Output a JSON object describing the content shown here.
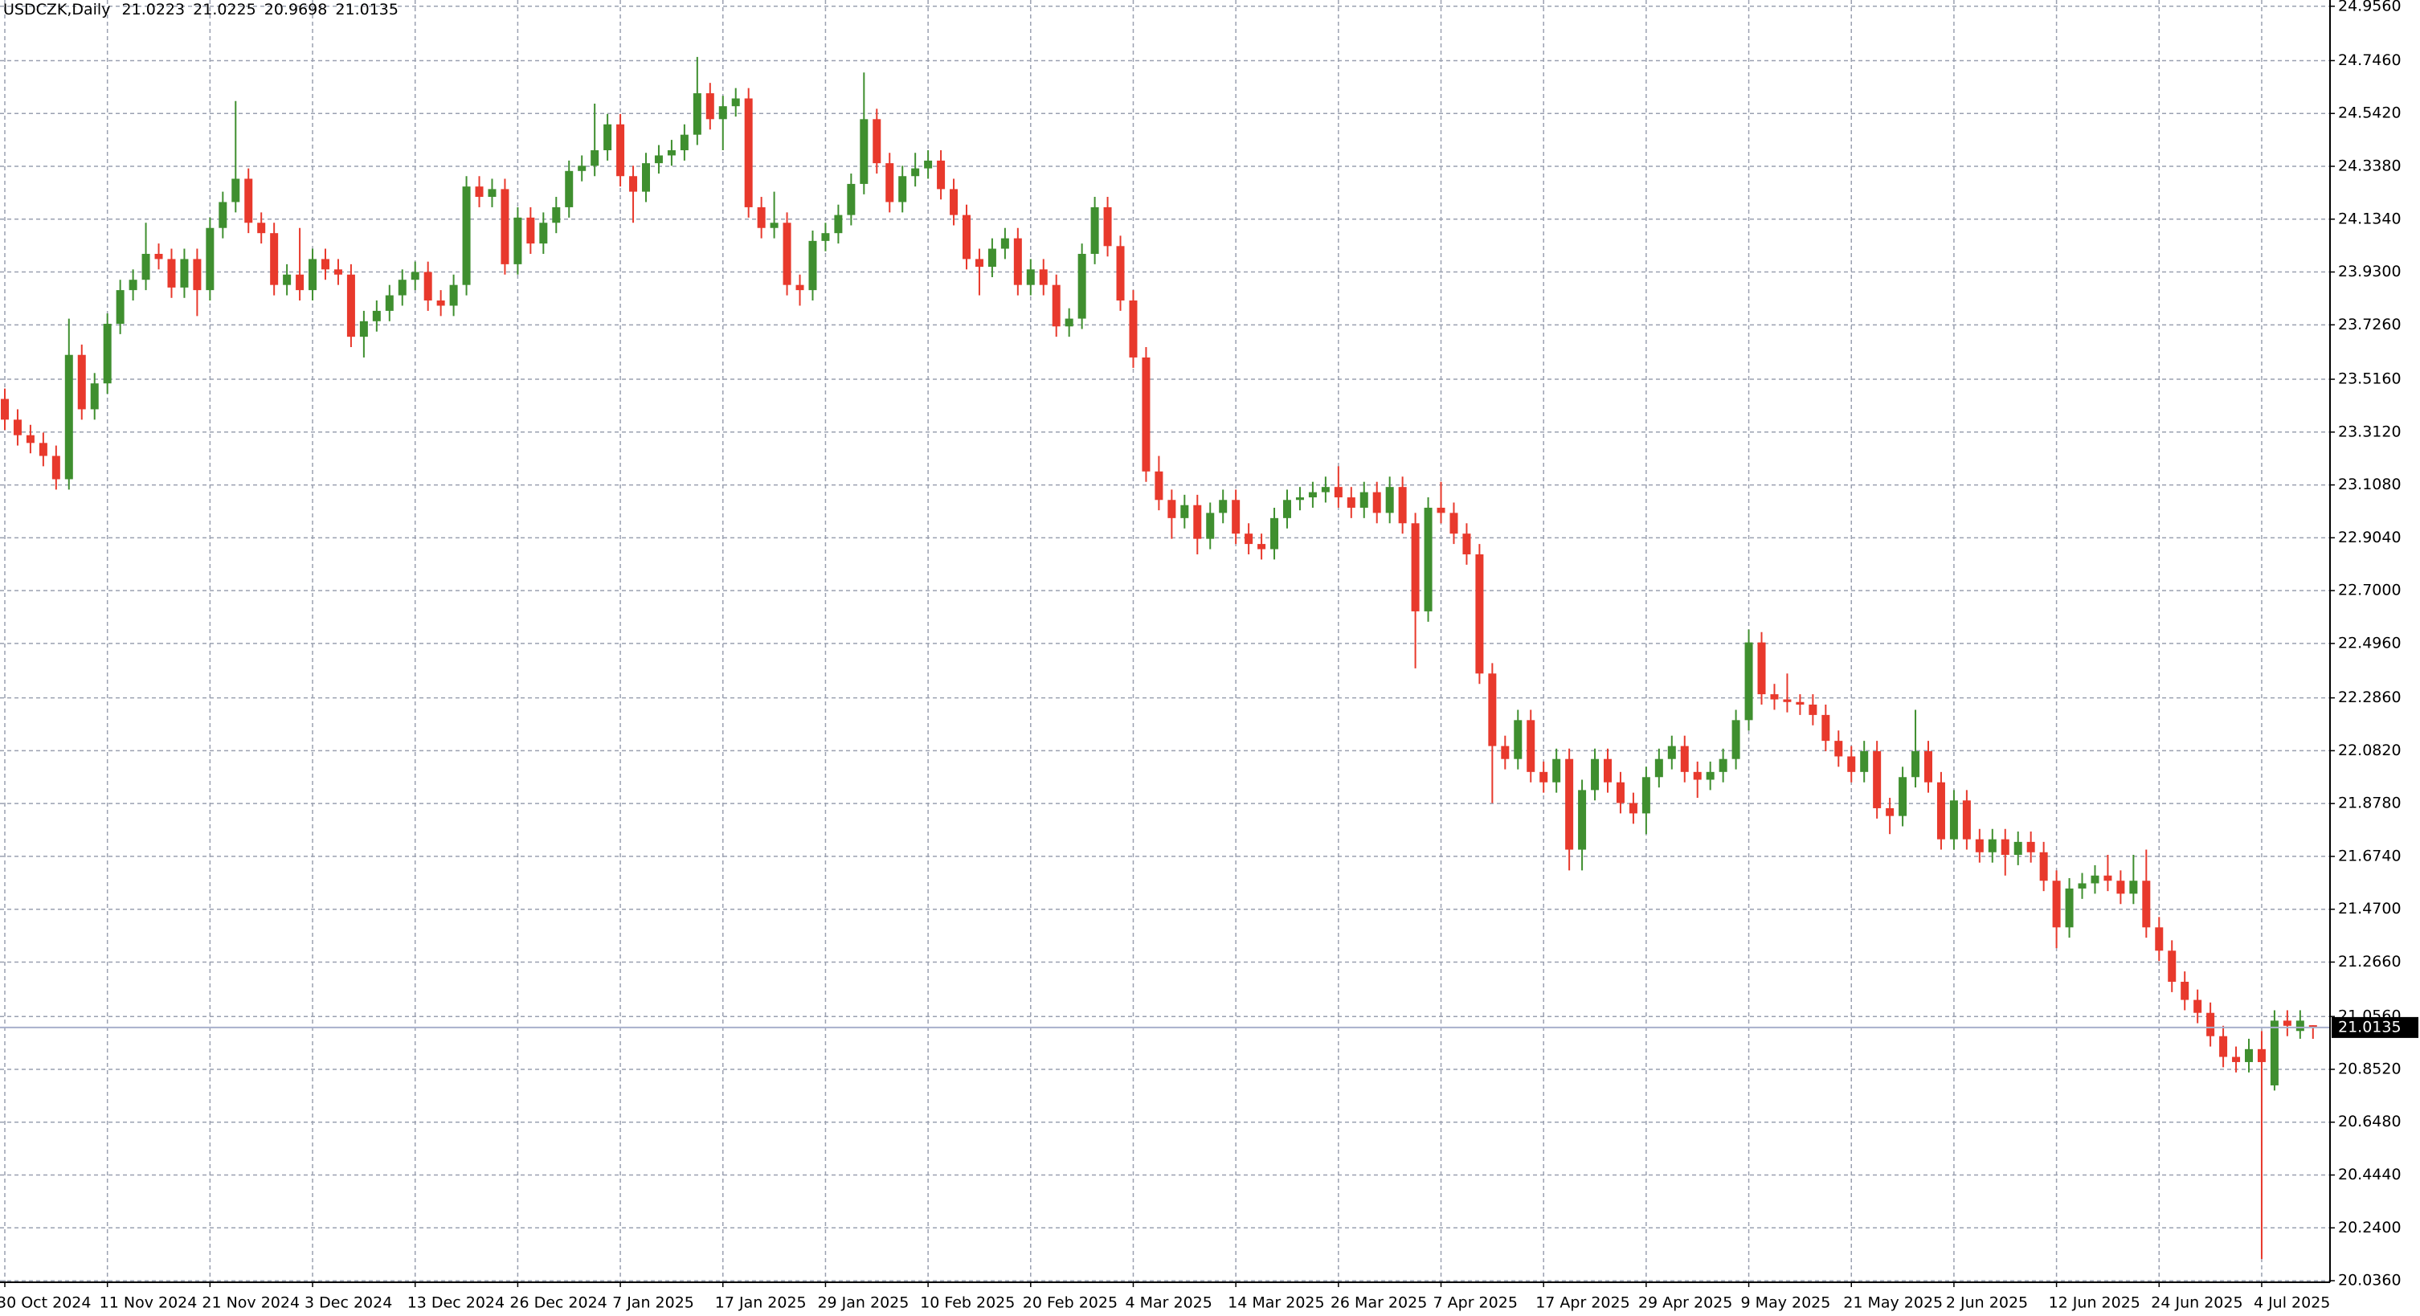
{
  "chart_data": {
    "type": "candlestick",
    "title": "USDCZK,Daily",
    "up_color": "#3f8f2f",
    "down_color": "#e8392c",
    "grid": true,
    "ylim": [
      20.03,
      24.98
    ],
    "yticks": [
      {
        "value": 24.956,
        "label": "24.9560"
      },
      {
        "value": 24.746,
        "label": "24.7460"
      },
      {
        "value": 24.542,
        "label": "24.5420"
      },
      {
        "value": 24.338,
        "label": "24.3380"
      },
      {
        "value": 24.134,
        "label": "24.1340"
      },
      {
        "value": 23.93,
        "label": "23.9300"
      },
      {
        "value": 23.726,
        "label": "23.7260"
      },
      {
        "value": 23.516,
        "label": "23.5160"
      },
      {
        "value": 23.312,
        "label": "23.3120"
      },
      {
        "value": 23.108,
        "label": "23.1080"
      },
      {
        "value": 22.904,
        "label": "22.9040"
      },
      {
        "value": 22.7,
        "label": "22.7000"
      },
      {
        "value": 22.496,
        "label": "22.4960"
      },
      {
        "value": 22.286,
        "label": "22.2860"
      },
      {
        "value": 22.082,
        "label": "22.0820"
      },
      {
        "value": 21.878,
        "label": "21.8780"
      },
      {
        "value": 21.674,
        "label": "21.6740"
      },
      {
        "value": 21.47,
        "label": "21.4700"
      },
      {
        "value": 21.266,
        "label": "21.2660"
      },
      {
        "value": 21.056,
        "label": "21.0560"
      },
      {
        "value": 20.852,
        "label": "20.8520"
      },
      {
        "value": 20.648,
        "label": "20.6480"
      },
      {
        "value": 20.444,
        "label": "20.4440"
      },
      {
        "value": 20.24,
        "label": "20.2400"
      },
      {
        "value": 20.036,
        "label": "20.0360"
      }
    ],
    "categories": [
      "30 Oct 2024",
      null,
      null,
      null,
      null,
      null,
      null,
      null,
      "11 Nov 2024",
      null,
      null,
      null,
      null,
      null,
      null,
      null,
      "21 Nov 2024",
      null,
      null,
      null,
      null,
      null,
      null,
      null,
      "3 Dec 2024",
      null,
      null,
      null,
      null,
      null,
      null,
      null,
      "13 Dec 2024",
      null,
      null,
      null,
      null,
      null,
      null,
      null,
      "26 Dec 2024",
      null,
      null,
      null,
      null,
      null,
      null,
      null,
      "7 Jan 2025",
      null,
      null,
      null,
      null,
      null,
      null,
      null,
      "17 Jan 2025",
      null,
      null,
      null,
      null,
      null,
      null,
      null,
      "29 Jan 2025",
      null,
      null,
      null,
      null,
      null,
      null,
      null,
      "10 Feb 2025",
      null,
      null,
      null,
      null,
      null,
      null,
      null,
      "20 Feb 2025",
      null,
      null,
      null,
      null,
      null,
      null,
      null,
      "4 Mar 2025",
      null,
      null,
      null,
      null,
      null,
      null,
      null,
      "14 Mar 2025",
      null,
      null,
      null,
      null,
      null,
      null,
      null,
      "26 Mar 2025",
      null,
      null,
      null,
      null,
      null,
      null,
      null,
      "7 Apr 2025",
      null,
      null,
      null,
      null,
      null,
      null,
      null,
      "17 Apr 2025",
      null,
      null,
      null,
      null,
      null,
      null,
      null,
      "29 Apr 2025",
      null,
      null,
      null,
      null,
      null,
      null,
      null,
      "9 May 2025",
      null,
      null,
      null,
      null,
      null,
      null,
      null,
      "21 May 2025",
      null,
      null,
      null,
      null,
      null,
      null,
      null,
      "2 Jun 2025",
      null,
      null,
      null,
      null,
      null,
      null,
      null,
      "12 Jun 2025",
      null,
      null,
      null,
      null,
      null,
      null,
      null,
      "24 Jun 2025",
      null,
      null,
      null,
      null,
      null,
      null,
      null,
      "4 Jul 2025",
      null,
      null,
      null,
      null
    ],
    "open": [
      23.44,
      23.36,
      23.3,
      23.27,
      23.22,
      23.13,
      23.61,
      23.4,
      23.5,
      23.73,
      23.86,
      23.9,
      24.0,
      23.98,
      23.87,
      23.98,
      23.86,
      24.1,
      24.2,
      24.29,
      24.12,
      24.08,
      23.88,
      23.92,
      23.86,
      23.98,
      23.94,
      23.92,
      23.68,
      23.74,
      23.78,
      23.84,
      23.9,
      23.93,
      23.82,
      23.8,
      23.88,
      24.26,
      24.22,
      24.25,
      23.96,
      24.14,
      24.04,
      24.12,
      24.18,
      24.32,
      24.34,
      24.4,
      24.5,
      24.3,
      24.24,
      24.35,
      24.38,
      24.4,
      24.46,
      24.62,
      24.52,
      24.57,
      24.6,
      24.18,
      24.1,
      24.12,
      23.88,
      23.86,
      24.05,
      24.08,
      24.15,
      24.27,
      24.52,
      24.35,
      24.2,
      24.3,
      24.33,
      24.36,
      24.25,
      24.15,
      23.98,
      23.95,
      24.02,
      24.06,
      23.88,
      23.94,
      23.88,
      23.72,
      23.75,
      24.0,
      24.18,
      24.03,
      23.82,
      23.6,
      23.16,
      23.05,
      22.98,
      23.03,
      22.9,
      23.0,
      23.05,
      22.92,
      22.88,
      22.86,
      22.98,
      23.05,
      23.06,
      23.08,
      23.1,
      23.06,
      23.02,
      23.08,
      23.0,
      23.1,
      22.96,
      22.62,
      23.02,
      23.0,
      22.92,
      22.84,
      22.38,
      22.1,
      22.05,
      22.2,
      22.0,
      21.96,
      22.05,
      21.7,
      21.93,
      22.05,
      21.96,
      21.88,
      21.84,
      21.98,
      22.05,
      22.1,
      22.0,
      21.97,
      22.0,
      22.05,
      22.2,
      22.5,
      22.3,
      22.28,
      22.27,
      22.26,
      22.22,
      22.12,
      22.06,
      22.0,
      22.08,
      21.86,
      21.83,
      21.98,
      22.08,
      21.96,
      21.74,
      21.89,
      21.74,
      21.69,
      21.74,
      21.68,
      21.73,
      21.69,
      21.58,
      21.4,
      21.55,
      21.57,
      21.6,
      21.58,
      21.53,
      21.58,
      21.4,
      21.31,
      21.19,
      21.12,
      21.07,
      20.98,
      20.9,
      20.88,
      20.93,
      20.79,
      21.04,
      21.0,
      21.0223
    ],
    "high": [
      23.48,
      23.4,
      23.34,
      23.31,
      23.26,
      23.75,
      23.65,
      23.54,
      23.77,
      23.9,
      23.94,
      24.12,
      24.04,
      24.02,
      24.02,
      24.02,
      24.14,
      24.24,
      24.59,
      24.33,
      24.16,
      24.12,
      23.96,
      24.1,
      24.02,
      24.02,
      23.98,
      23.96,
      23.78,
      23.82,
      23.88,
      23.94,
      23.97,
      23.97,
      23.86,
      23.92,
      24.3,
      24.3,
      24.29,
      24.29,
      24.18,
      24.18,
      24.16,
      24.22,
      24.36,
      24.38,
      24.58,
      24.54,
      24.54,
      24.34,
      24.39,
      24.42,
      24.44,
      24.5,
      24.76,
      24.66,
      24.61,
      24.64,
      24.64,
      24.22,
      24.24,
      24.16,
      23.92,
      24.09,
      24.12,
      24.19,
      24.31,
      24.7,
      24.56,
      24.39,
      24.34,
      24.39,
      24.4,
      24.4,
      24.29,
      24.19,
      24.02,
      24.06,
      24.1,
      24.1,
      23.98,
      23.98,
      23.92,
      23.79,
      24.04,
      24.22,
      24.22,
      24.07,
      23.86,
      23.64,
      23.22,
      23.09,
      23.07,
      23.07,
      23.04,
      23.09,
      23.09,
      22.96,
      22.92,
      23.02,
      23.09,
      23.1,
      23.12,
      23.14,
      23.18,
      23.1,
      23.12,
      23.12,
      23.14,
      23.14,
      23.0,
      23.06,
      23.12,
      23.04,
      22.96,
      22.88,
      22.42,
      22.14,
      22.24,
      22.24,
      22.04,
      22.09,
      22.09,
      21.97,
      22.09,
      22.09,
      22.0,
      21.92,
      22.02,
      22.09,
      22.14,
      22.14,
      22.04,
      22.04,
      22.09,
      22.24,
      22.55,
      22.54,
      22.34,
      22.38,
      22.3,
      22.3,
      22.26,
      22.16,
      22.1,
      22.12,
      22.12,
      21.9,
      22.02,
      22.24,
      22.12,
      22.0,
      21.93,
      21.93,
      21.78,
      21.78,
      21.78,
      21.77,
      21.77,
      21.73,
      21.62,
      21.59,
      21.61,
      21.64,
      21.68,
      21.62,
      21.68,
      21.7,
      21.44,
      21.35,
      21.23,
      21.16,
      21.11,
      21.02,
      20.94,
      20.97,
      21.0,
      21.08,
      21.08,
      21.08,
      21.0225
    ],
    "low": [
      23.32,
      23.26,
      23.23,
      23.18,
      23.09,
      23.09,
      23.36,
      23.36,
      23.46,
      23.69,
      23.82,
      23.86,
      23.94,
      23.83,
      23.83,
      23.76,
      23.82,
      24.06,
      24.16,
      24.08,
      24.04,
      23.84,
      23.84,
      23.82,
      23.82,
      23.9,
      23.88,
      23.64,
      23.6,
      23.7,
      23.74,
      23.8,
      23.86,
      23.78,
      23.76,
      23.76,
      23.84,
      24.18,
      24.18,
      23.92,
      23.92,
      24.0,
      24.0,
      24.08,
      24.14,
      24.28,
      24.3,
      24.36,
      24.26,
      24.12,
      24.2,
      24.31,
      24.34,
      24.36,
      24.42,
      24.48,
      24.4,
      24.53,
      24.14,
      24.06,
      24.06,
      23.84,
      23.8,
      23.82,
      24.01,
      24.04,
      24.11,
      24.23,
      24.31,
      24.16,
      24.16,
      24.26,
      24.29,
      24.21,
      24.11,
      23.94,
      23.84,
      23.91,
      23.98,
      23.84,
      23.84,
      23.84,
      23.68,
      23.68,
      23.71,
      23.96,
      23.99,
      23.78,
      23.56,
      23.12,
      23.01,
      22.9,
      22.94,
      22.84,
      22.86,
      22.96,
      22.88,
      22.84,
      22.82,
      22.82,
      22.94,
      23.01,
      23.02,
      23.04,
      23.02,
      22.98,
      22.98,
      22.96,
      22.96,
      22.92,
      22.4,
      22.58,
      22.96,
      22.88,
      22.8,
      22.34,
      21.88,
      22.01,
      22.01,
      21.96,
      21.92,
      21.92,
      21.62,
      21.62,
      21.89,
      21.92,
      21.84,
      21.8,
      21.76,
      21.94,
      22.01,
      21.96,
      21.9,
      21.93,
      21.96,
      22.01,
      22.16,
      22.26,
      22.24,
      22.23,
      22.22,
      22.18,
      22.08,
      22.02,
      21.96,
      21.96,
      21.82,
      21.76,
      21.79,
      21.94,
      21.92,
      21.7,
      21.7,
      21.7,
      21.65,
      21.65,
      21.6,
      21.64,
      21.65,
      21.54,
      21.32,
      21.36,
      21.51,
      21.53,
      21.54,
      21.49,
      21.49,
      21.36,
      21.27,
      21.15,
      21.08,
      21.03,
      20.94,
      20.86,
      20.84,
      20.84,
      20.12,
      20.77,
      20.98,
      20.97,
      20.9698
    ],
    "close": [
      23.36,
      23.3,
      23.27,
      23.22,
      23.13,
      23.61,
      23.4,
      23.5,
      23.73,
      23.86,
      23.9,
      24.0,
      23.98,
      23.87,
      23.98,
      23.86,
      24.1,
      24.2,
      24.29,
      24.12,
      24.08,
      23.88,
      23.92,
      23.86,
      23.98,
      23.94,
      23.92,
      23.68,
      23.74,
      23.78,
      23.84,
      23.9,
      23.93,
      23.82,
      23.8,
      23.88,
      24.26,
      24.22,
      24.25,
      23.96,
      24.14,
      24.04,
      24.12,
      24.18,
      24.32,
      24.34,
      24.4,
      24.5,
      24.3,
      24.24,
      24.35,
      24.38,
      24.4,
      24.46,
      24.62,
      24.52,
      24.57,
      24.6,
      24.18,
      24.1,
      24.12,
      23.88,
      23.86,
      24.05,
      24.08,
      24.15,
      24.27,
      24.52,
      24.35,
      24.2,
      24.3,
      24.33,
      24.36,
      24.25,
      24.15,
      23.98,
      23.95,
      24.02,
      24.06,
      23.88,
      23.94,
      23.88,
      23.72,
      23.75,
      24.0,
      24.18,
      24.03,
      23.82,
      23.6,
      23.16,
      23.05,
      22.98,
      23.03,
      22.9,
      23.0,
      23.05,
      22.92,
      22.88,
      22.86,
      22.98,
      23.05,
      23.06,
      23.08,
      23.1,
      23.06,
      23.02,
      23.08,
      23.0,
      23.1,
      22.96,
      22.62,
      23.02,
      23.0,
      22.92,
      22.84,
      22.38,
      22.1,
      22.05,
      22.2,
      22.0,
      21.96,
      22.05,
      21.7,
      21.93,
      22.05,
      21.96,
      21.88,
      21.84,
      21.98,
      22.05,
      22.1,
      22.0,
      21.97,
      22.0,
      22.05,
      22.2,
      22.5,
      22.3,
      22.28,
      22.27,
      22.26,
      22.22,
      22.12,
      22.06,
      22.0,
      22.08,
      21.86,
      21.83,
      21.98,
      22.08,
      21.96,
      21.74,
      21.89,
      21.74,
      21.69,
      21.74,
      21.68,
      21.73,
      21.69,
      21.58,
      21.4,
      21.55,
      21.57,
      21.6,
      21.58,
      21.53,
      21.58,
      21.4,
      21.31,
      21.19,
      21.12,
      21.07,
      20.98,
      20.9,
      20.88,
      20.93,
      20.88,
      21.04,
      21.02,
      21.04,
      21.0135
    ]
  }
}
